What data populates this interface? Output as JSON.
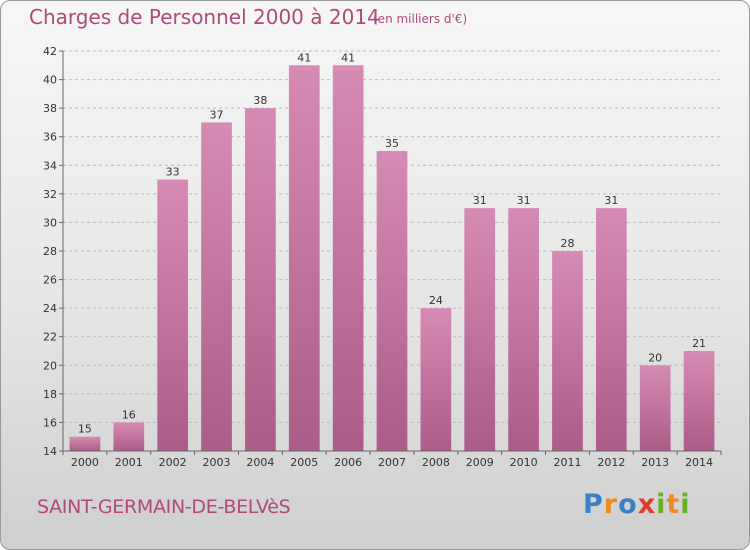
{
  "title": "Charges de Personnel 2000 à 2014",
  "subtitle": "(en milliers d'€)",
  "commune": "SAINT-GERMAIN-DE-BELVèS",
  "logo": {
    "letters": [
      "P",
      "r",
      "o",
      "x",
      "i",
      "t",
      "i"
    ],
    "colors": [
      "#3b7fc4",
      "#ef8a1e",
      "#3b7fc4",
      "#e23a2a",
      "#6ab023",
      "#ef8a1e",
      "#6ab023"
    ]
  },
  "colors": {
    "bar": "#d68bb4",
    "bar_dark": "#ab5c88",
    "text": "#b04a7a",
    "grid": "#bbbbbb"
  },
  "chart_data": {
    "type": "bar",
    "title": "Charges de Personnel 2000 à 2014",
    "subtitle": "(en milliers d'€)",
    "categories": [
      "2000",
      "2001",
      "2002",
      "2003",
      "2004",
      "2005",
      "2006",
      "2007",
      "2008",
      "2009",
      "2010",
      "2011",
      "2012",
      "2013",
      "2014"
    ],
    "values": [
      15,
      16,
      33,
      37,
      38,
      41,
      41,
      35,
      24,
      31,
      31,
      28,
      31,
      20,
      21
    ],
    "ylim": [
      14,
      42
    ],
    "yticks": [
      14,
      16,
      18,
      20,
      22,
      24,
      26,
      28,
      30,
      32,
      34,
      36,
      38,
      40,
      42
    ],
    "grid": true
  }
}
